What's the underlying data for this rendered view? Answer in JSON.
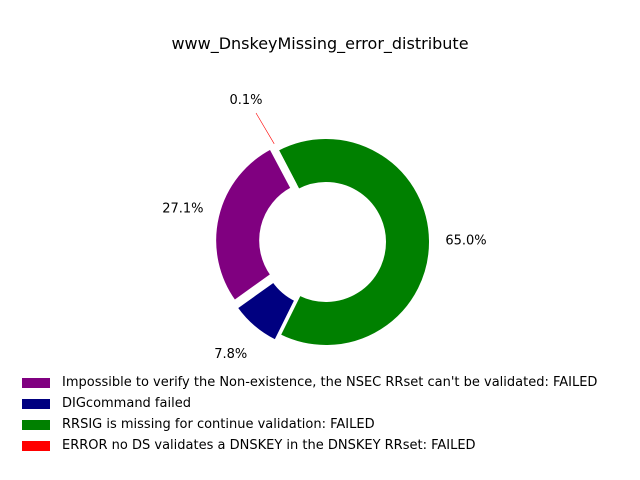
{
  "chart_data": {
    "type": "pie",
    "donut": true,
    "title": "www_DnskeyMissing_error_distribute",
    "slices": [
      {
        "label": "Impossible to verify the Non-existence, the NSEC RRset can't be validated: FAILED",
        "value": 27.1,
        "pct_label": "27.1%",
        "color": "#800080"
      },
      {
        "label": "DIGcommand failed",
        "value": 7.8,
        "pct_label": "7.8%",
        "color": "#000080"
      },
      {
        "label": "RRSIG is missing for continue validation: FAILED",
        "value": 65.0,
        "pct_label": "65.0%",
        "color": "#008000"
      },
      {
        "label": "ERROR no DS validates a DNSKEY in the DNSKEY RRset: FAILED",
        "value": 0.1,
        "pct_label": "0.1%",
        "color": "#ff0000"
      }
    ],
    "legend_position": "bottom-left"
  }
}
